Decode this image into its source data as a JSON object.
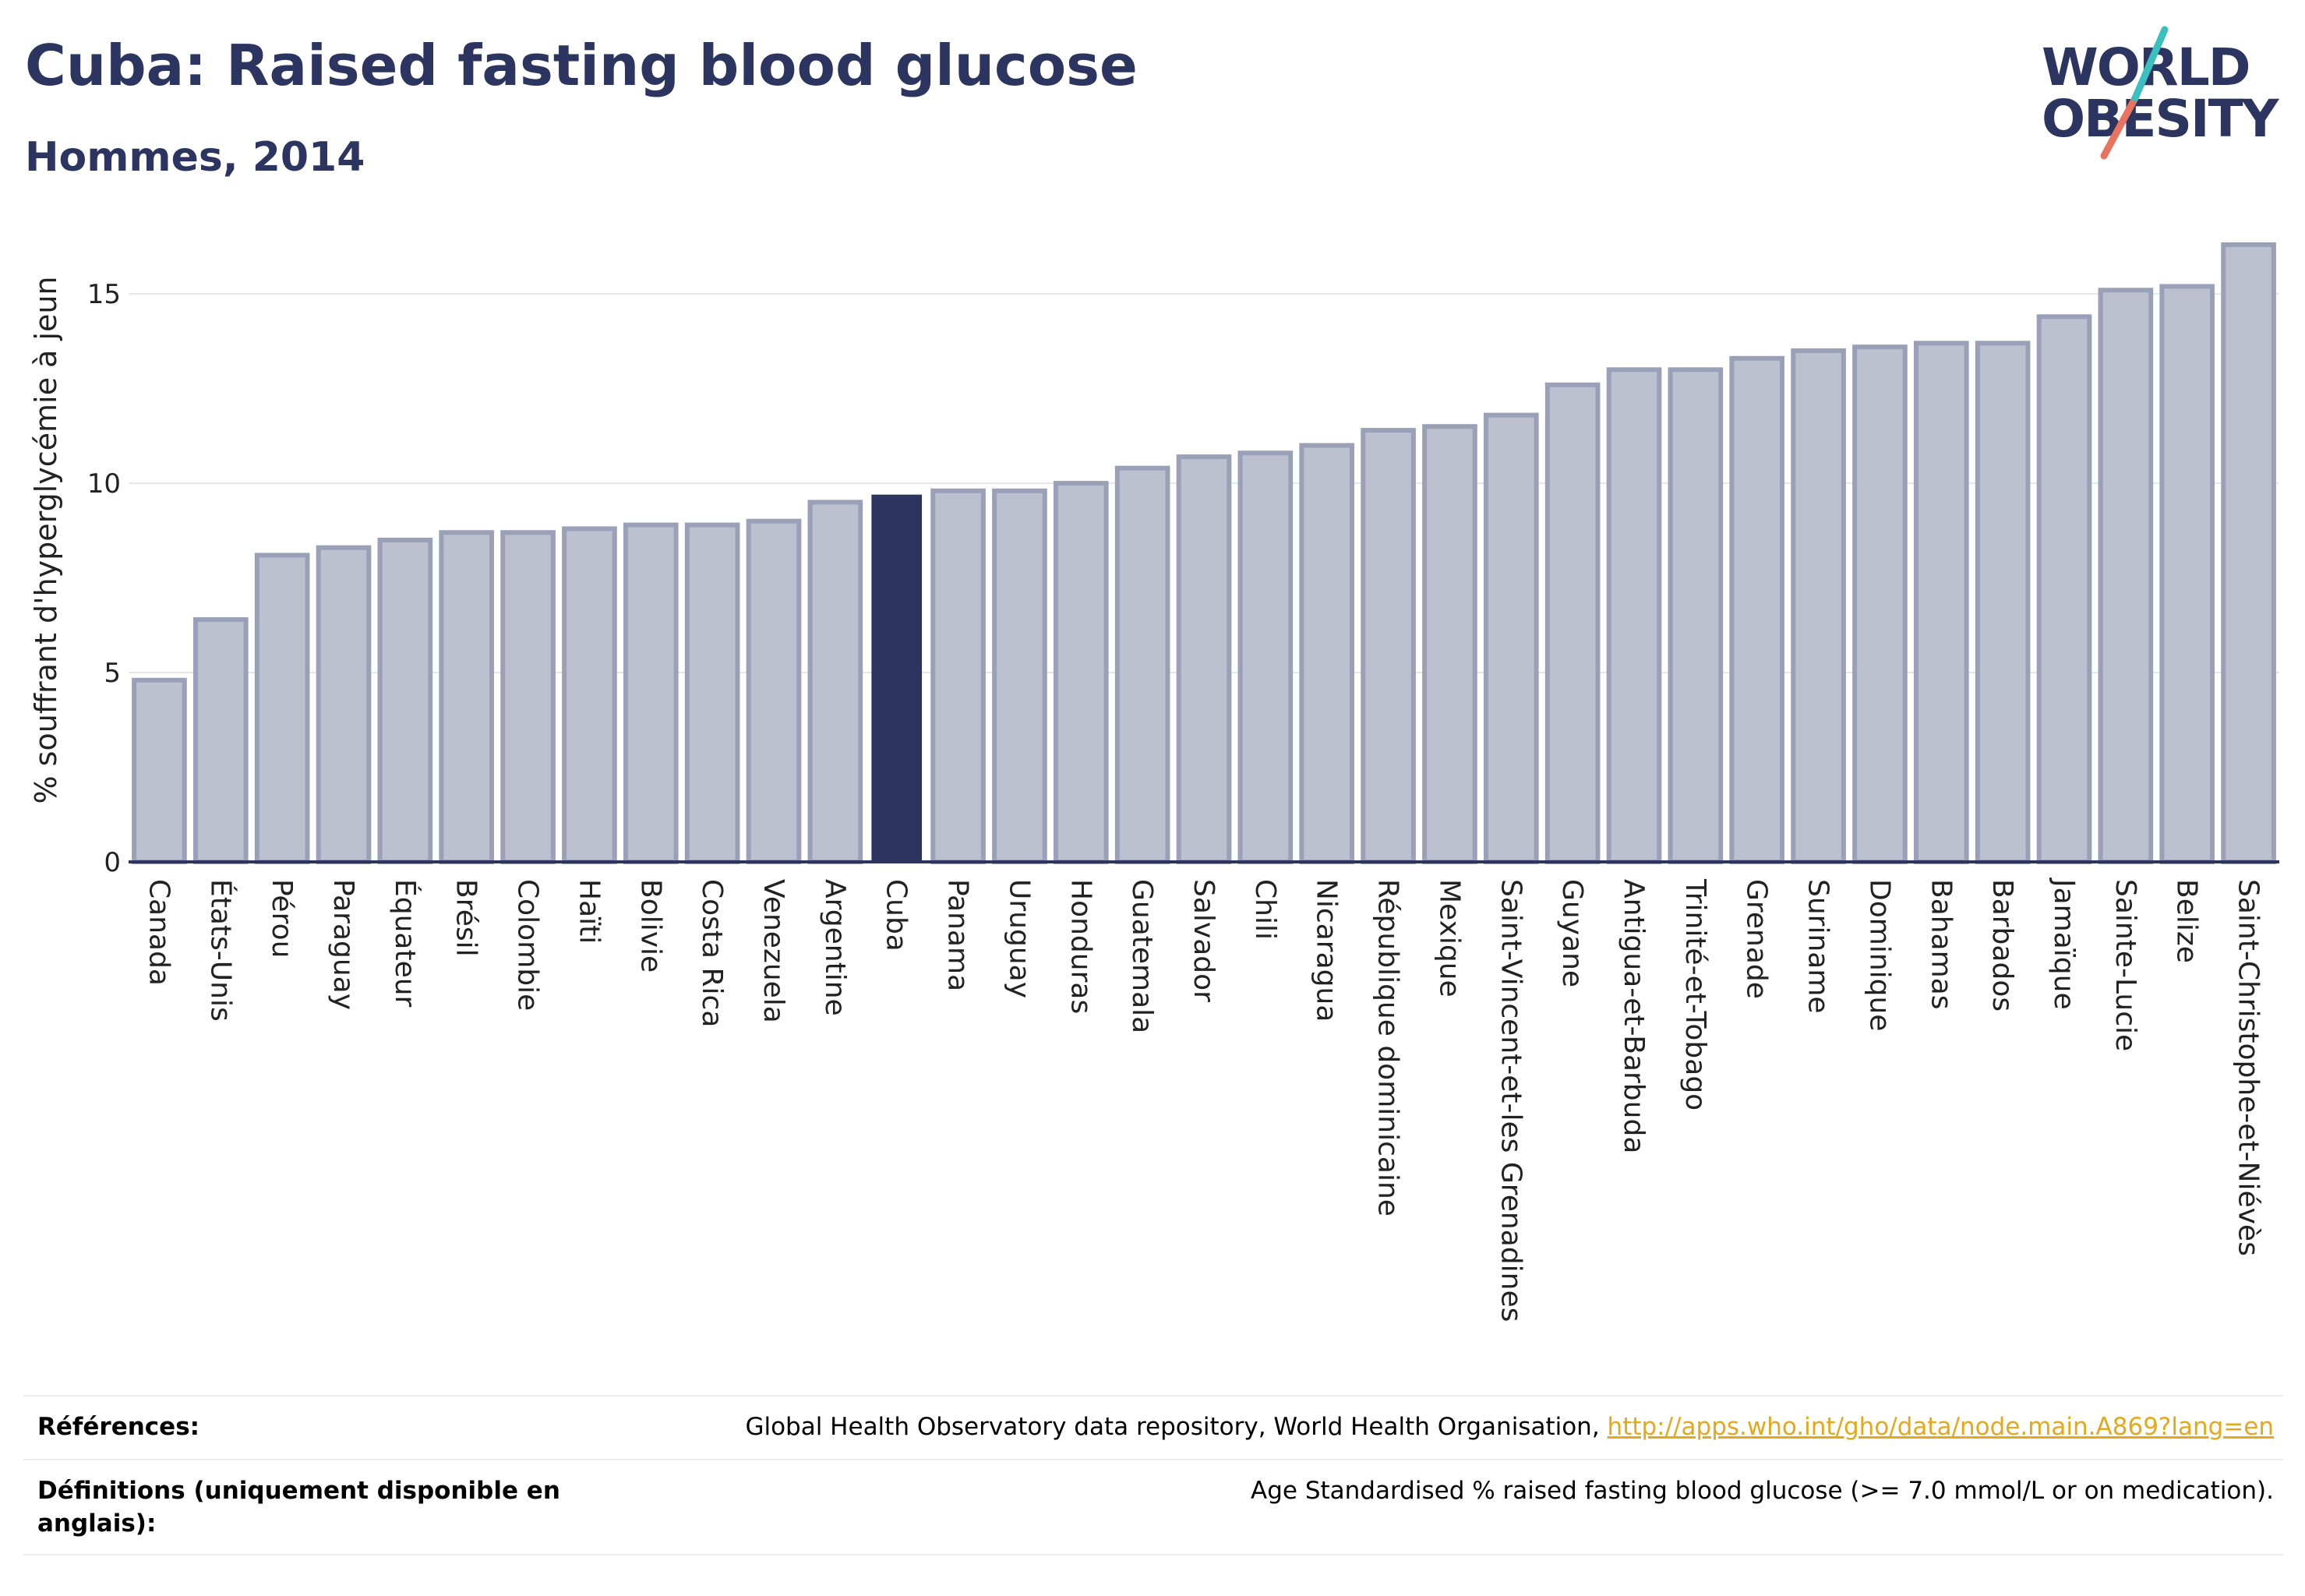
{
  "header": {
    "title": "Cuba: Raised fasting blood glucose",
    "subtitle": "Hommes, 2014"
  },
  "logo": {
    "line1": "WORLD",
    "line2": "OBESITY",
    "colors": {
      "text": "#2b3560",
      "slash_teal": "#3bbfbf",
      "slash_coral": "#e8735f"
    }
  },
  "references": {
    "label": "Références:",
    "text": "Global Health Observatory data repository, World Health Organisation, ",
    "link": "http://apps.who.int/gho/data/node.main.A869?lang=en"
  },
  "definitions": {
    "label": "Définitions (uniquement disponible en anglais):",
    "text": "Age Standardised % raised fasting blood glucose (>= 7.0 mmol/L or on medication)."
  },
  "colors": {
    "highlight": "#2b3560",
    "bar_fill": "#bcc0cf",
    "bar_stroke": "#9aa0b8",
    "grid": "#e6e6e6",
    "axis": "#2b3560"
  },
  "chart_data": {
    "type": "bar",
    "title": "Cuba: Raised fasting blood glucose",
    "subtitle": "Hommes, 2014",
    "xlabel": "",
    "ylabel": "% souffrant d'hyperglycémie à jeun",
    "ylim": [
      0,
      17
    ],
    "yticks": [
      0,
      5,
      10,
      15
    ],
    "grid": true,
    "highlight": "Cuba",
    "categories": [
      "Canada",
      "États-Unis",
      "Pérou",
      "Paraguay",
      "Équateur",
      "Brésil",
      "Colombie",
      "Haïti",
      "Bolivie",
      "Costa Rica",
      "Venezuela",
      "Argentine",
      "Cuba",
      "Panama",
      "Uruguay",
      "Honduras",
      "Guatemala",
      "Salvador",
      "Chili",
      "Nicaragua",
      "République dominicaine",
      "Mexique",
      "Saint-Vincent-et-les Grenadines",
      "Guyane",
      "Antigua-et-Barbuda",
      "Trinité-et-Tobago",
      "Grenade",
      "Suriname",
      "Dominique",
      "Bahamas",
      "Barbados",
      "Jamaïque",
      "Sainte-Lucie",
      "Belize",
      "Saint-Christophe-et-Niévès"
    ],
    "values": [
      4.8,
      6.4,
      8.1,
      8.3,
      8.5,
      8.7,
      8.7,
      8.8,
      8.9,
      8.9,
      9.0,
      9.5,
      9.7,
      9.8,
      9.8,
      10.0,
      10.4,
      10.7,
      10.8,
      11.0,
      11.4,
      11.5,
      11.8,
      12.6,
      13.0,
      13.0,
      13.3,
      13.5,
      13.6,
      13.7,
      13.7,
      14.4,
      15.1,
      15.2,
      16.3
    ]
  }
}
